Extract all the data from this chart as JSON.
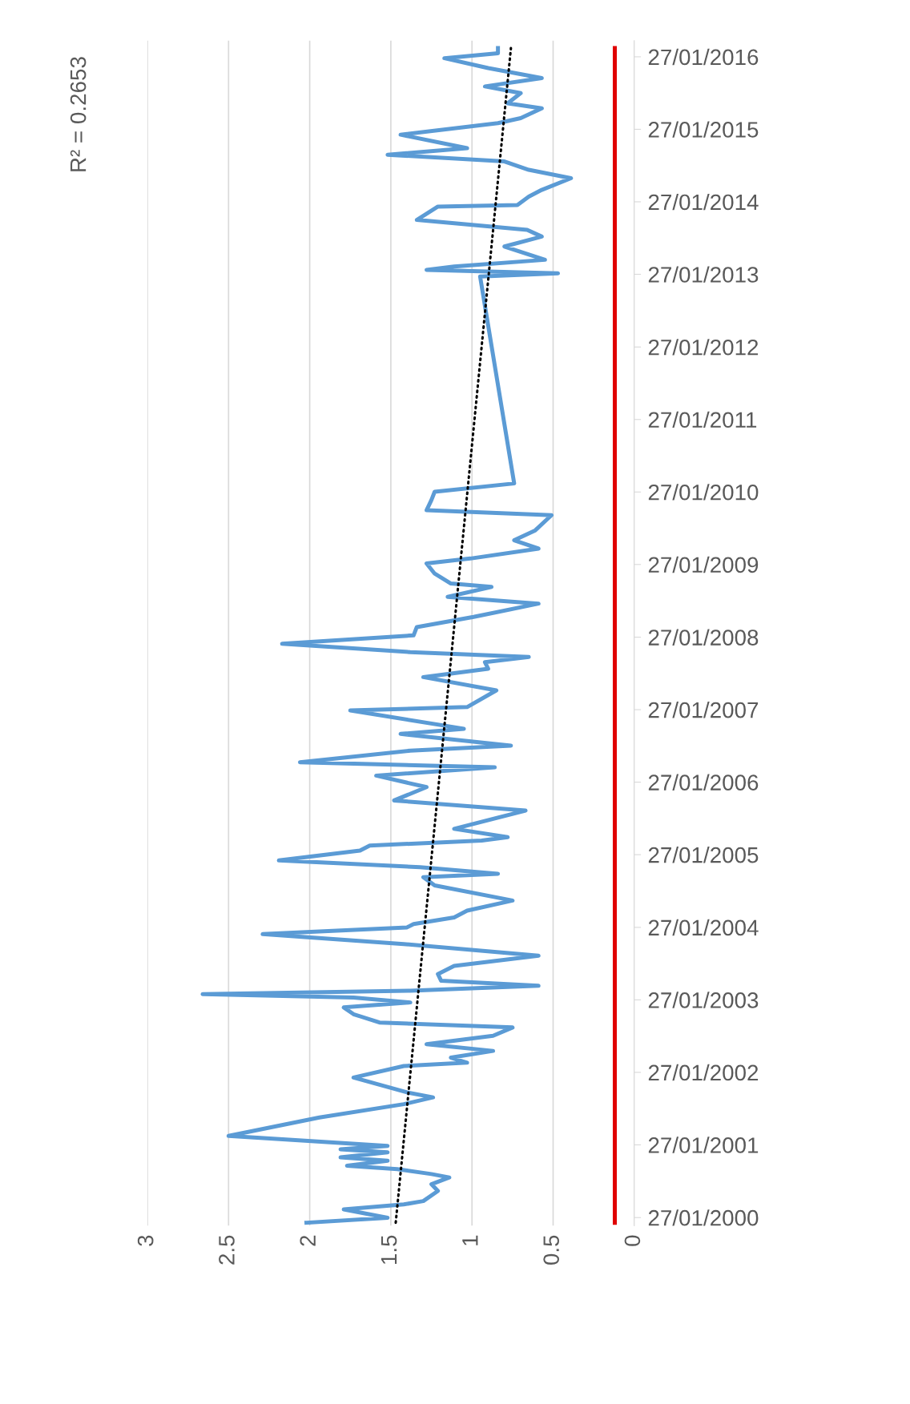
{
  "chart_data": {
    "type": "line",
    "orientation": "horizontal",
    "annotations": [
      "R² = 0.2653"
    ],
    "xlim": [
      3,
      0
    ],
    "xticks": [
      0,
      0.5,
      1,
      1.5,
      2,
      2.5,
      3
    ],
    "ylim": [
      "1999-12-17",
      "2016-04-17"
    ],
    "yticks": [
      {
        "value": "2000-01-27",
        "label": "27/01/2000"
      },
      {
        "value": "2001-01-27",
        "label": "27/01/2001"
      },
      {
        "value": "2002-01-27",
        "label": "27/01/2002"
      },
      {
        "value": "2003-01-27",
        "label": "27/01/2003"
      },
      {
        "value": "2004-01-27",
        "label": "27/01/2004"
      },
      {
        "value": "2005-01-27",
        "label": "27/01/2005"
      },
      {
        "value": "2006-01-27",
        "label": "27/01/2006"
      },
      {
        "value": "2007-01-27",
        "label": "27/01/2007"
      },
      {
        "value": "2008-01-27",
        "label": "27/01/2008"
      },
      {
        "value": "2009-01-27",
        "label": "27/01/2009"
      },
      {
        "value": "2010-01-27",
        "label": "27/01/2010"
      },
      {
        "value": "2011-01-27",
        "label": "27/01/2011"
      },
      {
        "value": "2012-01-27",
        "label": "27/01/2012"
      },
      {
        "value": "2013-01-27",
        "label": "27/01/2013"
      },
      {
        "value": "2014-01-27",
        "label": "27/01/2014"
      },
      {
        "value": "2015-01-27",
        "label": "27/01/2015"
      },
      {
        "value": "2016-01-27",
        "label": "27/01/2016"
      }
    ],
    "grid": "x",
    "legend": false,
    "series": [
      {
        "color": "#e00000",
        "line_style": "solid",
        "x": [
          "2000-01-01",
          "2016-03-11"
        ],
        "values": [
          0.12,
          0.12
        ]
      },
      {
        "color": "#5b9bd5",
        "line_style": "solid",
        "x": [
          "2000-01-01",
          "2000-01-26",
          "2000-03-08",
          "2000-04-02",
          "2000-04-19",
          "2000-06-09",
          "2000-07-13",
          "2000-08-16",
          "2000-09-02",
          "2000-09-27",
          "2000-10-14",
          "2000-11-08",
          "2000-11-25",
          "2000-12-20",
          "2001-01-05",
          "2001-01-22",
          "2001-03-13",
          "2001-06-14",
          "2001-08-20",
          "2001-09-23",
          "2001-10-18",
          "2002-01-01",
          "2002-02-28",
          "2002-03-17",
          "2002-04-11",
          "2002-05-15",
          "2002-06-18",
          "2002-07-30",
          "2002-09-10",
          "2002-10-05",
          "2002-11-16",
          "2002-12-20",
          "2003-01-14",
          "2003-02-08",
          "2003-02-25",
          "2003-03-14",
          "2003-04-08",
          "2003-05-03",
          "2003-06-06",
          "2003-07-17",
          "2003-09-06",
          "2003-11-04",
          "2003-12-24",
          "2004-01-27",
          "2004-02-13",
          "2004-03-17",
          "2004-04-20",
          "2004-06-10",
          "2004-08-25",
          "2004-10-06",
          "2004-10-23",
          "2004-11-25",
          "2004-12-29",
          "2005-02-17",
          "2005-03-14",
          "2005-04-08",
          "2005-04-25",
          "2005-06-06",
          "2005-09-06",
          "2005-10-27",
          "2006-01-02",
          "2006-03-01",
          "2006-04-12",
          "2006-05-07",
          "2006-07-05",
          "2006-07-30",
          "2006-09-27",
          "2006-10-23",
          "2007-01-23",
          "2007-02-09",
          "2007-05-04",
          "2007-07-10",
          "2007-08-21",
          "2007-09-23",
          "2007-10-19",
          "2007-11-13",
          "2007-12-25",
          "2008-02-05",
          "2008-03-18",
          "2008-05-08",
          "2008-07-14",
          "2008-08-17",
          "2008-10-06",
          "2008-10-23",
          "2008-12-12",
          "2009-02-01",
          "2009-02-26",
          "2009-04-17",
          "2009-05-29",
          "2009-07-18",
          "2009-10-02",
          "2009-10-27",
          "2009-12-17",
          "2010-01-28",
          "2010-03-11",
          "2013-01-16",
          "2013-02-01",
          "2013-02-18",
          "2013-03-07",
          "2013-04-10",
          "2013-06-16",
          "2013-08-05",
          "2013-09-08",
          "2013-10-28",
          "2014-01-03",
          "2014-01-11",
          "2014-02-22",
          "2014-03-28",
          "2014-05-26",
          "2014-07-07",
          "2014-08-18",
          "2014-09-21",
          "2014-10-24",
          "2014-12-31",
          "2015-02-27",
          "2015-03-24",
          "2015-05-13",
          "2015-06-07",
          "2015-07-28",
          "2015-08-31",
          "2015-10-12",
          "2015-12-01",
          "2016-01-20",
          "2016-02-14",
          "2016-03-11"
        ],
        "values": [
          2.02,
          1.52,
          1.79,
          1.42,
          1.3,
          1.21,
          1.25,
          1.14,
          1.25,
          1.46,
          1.77,
          1.52,
          1.81,
          1.52,
          1.81,
          1.52,
          2.5,
          1.94,
          1.42,
          1.24,
          1.4,
          1.73,
          1.42,
          1.03,
          1.13,
          0.87,
          1.28,
          0.87,
          0.75,
          1.57,
          1.73,
          1.79,
          1.38,
          1.73,
          2.66,
          1.38,
          0.59,
          1.19,
          1.21,
          1.11,
          0.59,
          1.42,
          2.29,
          1.4,
          1.36,
          1.11,
          1.03,
          0.75,
          1.23,
          1.3,
          0.84,
          1.32,
          2.19,
          1.69,
          1.63,
          0.94,
          0.78,
          1.11,
          0.67,
          1.48,
          1.28,
          1.59,
          0.86,
          2.06,
          1.38,
          0.76,
          1.44,
          1.05,
          1.75,
          1.03,
          0.85,
          1.3,
          0.9,
          0.92,
          0.65,
          1.38,
          2.17,
          1.36,
          1.34,
          0.99,
          0.59,
          1.15,
          0.88,
          1.13,
          1.23,
          1.28,
          1.01,
          0.59,
          0.74,
          0.61,
          0.51,
          1.28,
          1.25,
          1.23,
          0.74,
          0.95,
          0.47,
          1.28,
          1.11,
          0.55,
          0.8,
          0.57,
          0.66,
          1.34,
          1.21,
          0.72,
          0.65,
          0.57,
          0.39,
          0.65,
          0.8,
          1.52,
          1.03,
          1.44,
          0.84,
          0.7,
          0.57,
          0.78,
          0.7,
          0.92,
          0.57,
          0.9,
          1.17,
          0.84,
          0.84
        ]
      },
      {
        "color": "#000000",
        "line_style": "dotted",
        "x": [
          "2000-01-01",
          "2016-03-11"
        ],
        "values": [
          1.47,
          0.76
        ]
      }
    ]
  }
}
